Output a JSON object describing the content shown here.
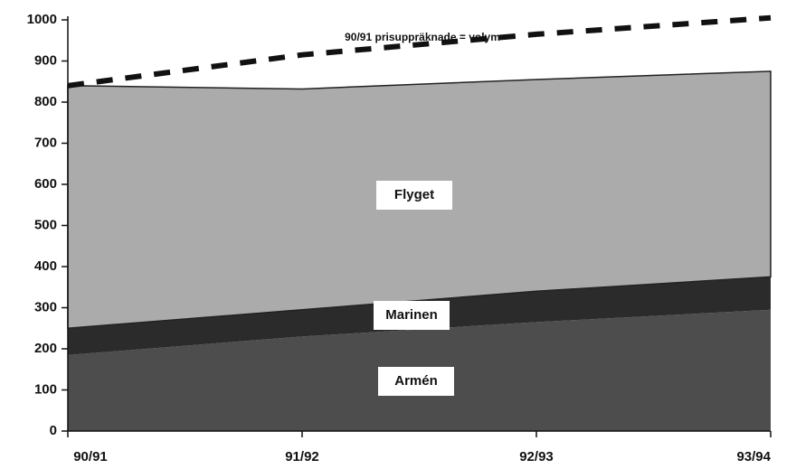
{
  "chart_data": {
    "type": "stacked_area",
    "categories": [
      "90/91",
      "91/92",
      "92/93",
      "93/94"
    ],
    "series": [
      {
        "name": "Armén",
        "color": "#4d4d4d",
        "values": [
          185,
          230,
          265,
          295
        ]
      },
      {
        "name": "Marinen",
        "color": "#2b2b2b",
        "values": [
          65,
          65,
          75,
          80
        ]
      },
      {
        "name": "Flyget",
        "color": "#ababab",
        "values": [
          590,
          537,
          515,
          500
        ]
      }
    ],
    "line": {
      "name": "90/91 prisuppräknade = volym",
      "color": "#111111",
      "values": [
        840,
        915,
        965,
        1005
      ]
    },
    "ylim": [
      0,
      1000
    ],
    "yticks": [
      0,
      100,
      200,
      300,
      400,
      500,
      600,
      700,
      800,
      900,
      1000
    ]
  }
}
